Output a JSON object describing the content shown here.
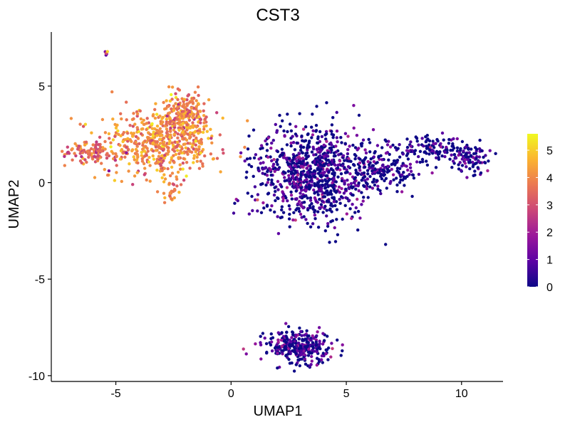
{
  "chart_data": {
    "type": "scatter",
    "title": "CST3",
    "xlabel": "UMAP1",
    "ylabel": "UMAP2",
    "xlim": [
      -7.8,
      11.8
    ],
    "ylim": [
      -10.3,
      7.8
    ],
    "x_ticks": [
      -5,
      0,
      5,
      10
    ],
    "y_ticks": [
      -10,
      -5,
      0,
      5
    ],
    "x_tick_labels": [
      "-5",
      "0",
      "5",
      "10"
    ],
    "y_tick_labels": [
      "-10",
      "-5",
      "0",
      "5"
    ],
    "grid": false,
    "color_scale": {
      "name": "plasma",
      "min": 0,
      "max": 5.6,
      "ticks": [
        0,
        1,
        2,
        3,
        4,
        5
      ],
      "tick_labels": [
        "0",
        "1",
        "2",
        "3",
        "4",
        "5"
      ],
      "stops": [
        "#0d0887",
        "#5b02a3",
        "#9a179b",
        "#cb4678",
        "#eb7852",
        "#fbb32f",
        "#f0f921"
      ]
    },
    "legend_position": "right",
    "clusters": [
      {
        "cx": -3.2,
        "cy": 2.0,
        "sx": 1.3,
        "sy": 0.9,
        "n": 520,
        "expr_mean": 4.0,
        "expr_sd": 0.6
      },
      {
        "cx": -2.0,
        "cy": 3.4,
        "sx": 0.5,
        "sy": 0.7,
        "n": 220,
        "expr_mean": 3.9,
        "expr_sd": 0.6
      },
      {
        "cx": -6.2,
        "cy": 1.6,
        "sx": 0.5,
        "sy": 0.3,
        "n": 90,
        "expr_mean": 3.6,
        "expr_sd": 0.6
      },
      {
        "cx": -2.6,
        "cy": -0.4,
        "sx": 0.15,
        "sy": 0.5,
        "n": 25,
        "expr_mean": 4.2,
        "expr_sd": 0.4
      },
      {
        "cx": -5.4,
        "cy": 6.7,
        "sx": 0.05,
        "sy": 0.08,
        "n": 5,
        "expr_mean": 2.5,
        "expr_sd": 1.0
      },
      {
        "cx": 3.6,
        "cy": 0.5,
        "sx": 1.3,
        "sy": 1.2,
        "n": 900,
        "expr_mean": 0.4,
        "expr_sd": 0.8
      },
      {
        "cx": 6.6,
        "cy": 0.6,
        "sx": 0.8,
        "sy": 0.6,
        "n": 160,
        "expr_mean": 0.3,
        "expr_sd": 0.7
      },
      {
        "cx": 8.6,
        "cy": 1.7,
        "sx": 0.8,
        "sy": 0.35,
        "n": 120,
        "expr_mean": 0.3,
        "expr_sd": 0.7
      },
      {
        "cx": 10.4,
        "cy": 1.3,
        "sx": 0.45,
        "sy": 0.35,
        "n": 90,
        "expr_mean": 0.4,
        "expr_sd": 0.7
      },
      {
        "cx": 3.0,
        "cy": -8.5,
        "sx": 0.7,
        "sy": 0.4,
        "n": 300,
        "expr_mean": 0.4,
        "expr_sd": 0.8
      }
    ]
  }
}
